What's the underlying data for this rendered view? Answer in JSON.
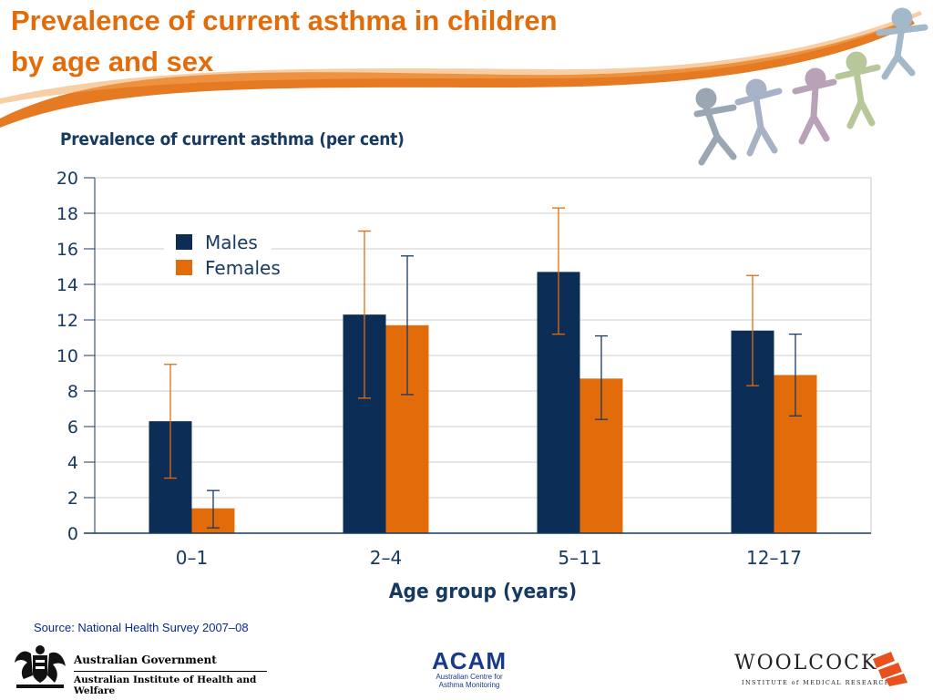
{
  "slide": {
    "title_line1": "Prevalence of current asthma in children",
    "title_line2": "by age and sex",
    "source": "Source: National Health Survey 2007–08",
    "accent_color": "#e36c0a"
  },
  "chart_data": {
    "type": "bar",
    "title": "Prevalence of current asthma (per cent)",
    "xlabel": "Age group (years)",
    "ylabel": "",
    "categories": [
      "0–1",
      "2–4",
      "5–11",
      "12–17"
    ],
    "ylim": [
      0,
      20
    ],
    "yticks": [
      "0",
      "2",
      "4",
      "6",
      "8",
      "10",
      "12",
      "14",
      "16",
      "18",
      "20"
    ],
    "grid": true,
    "legend": "top-left",
    "series": [
      {
        "name": "Males",
        "color": "#0c2d55",
        "values": [
          6.3,
          12.3,
          14.7,
          11.4
        ],
        "ci_low": [
          3.1,
          7.6,
          11.2,
          8.3
        ],
        "ci_high": [
          9.5,
          17.0,
          18.3,
          14.5
        ],
        "error_color": "#e36c0a"
      },
      {
        "name": "Females",
        "color": "#e36c0a",
        "values": [
          1.4,
          11.7,
          8.7,
          8.9
        ],
        "ci_low": [
          0.3,
          7.8,
          6.4,
          6.6
        ],
        "ci_high": [
          2.4,
          15.6,
          11.1,
          11.2
        ],
        "error_color": "#173a63"
      }
    ]
  },
  "logos": {
    "gov_line1": "Australian Government",
    "gov_line2": "Australian Institute of Health and Welfare",
    "acam_name": "ACAM",
    "acam_sub1": "Australian Centre for",
    "acam_sub2": "Asthma Monitoring",
    "woolcock_name": "WOOLCOCK",
    "woolcock_sub": "INSTITUTE of MEDICAL RESEARCH"
  }
}
